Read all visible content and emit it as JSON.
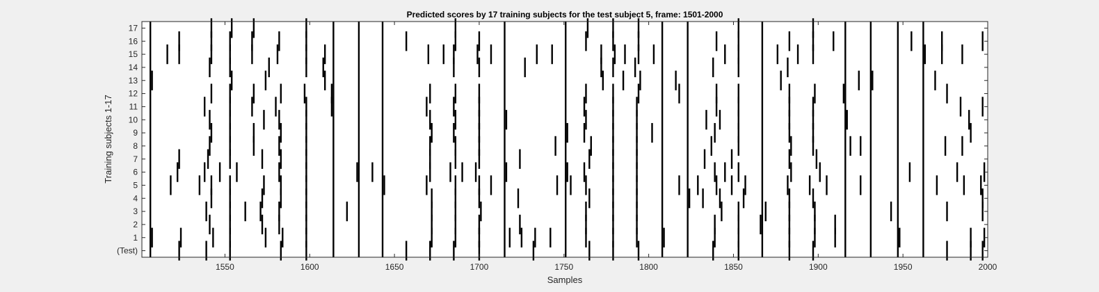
{
  "chart_data": {
    "type": "raster",
    "title": "Predicted scores by 17 training subjects for the test subject 5, frame: 1501-2000",
    "xlabel": "Samples",
    "ylabel": "Training subjects 1-17",
    "xlim": [
      1501,
      2000
    ],
    "xticks": [
      1550,
      1600,
      1650,
      1700,
      1750,
      1800,
      1850,
      1900,
      1950,
      2000
    ],
    "ytick_labels": [
      "(Test)",
      "1",
      "2",
      "3",
      "4",
      "5",
      "6",
      "7",
      "8",
      "9",
      "10",
      "11",
      "12",
      "13",
      "14",
      "15",
      "16",
      "17"
    ],
    "grid": false,
    "common_events": [
      1506,
      1614,
      1629,
      1643,
      1715,
      1751,
      1808,
      1823,
      1867,
      1916,
      1931,
      1947,
      1962
    ],
    "rows": [
      {
        "label": "(Test)",
        "events": [
          1506,
          1523,
          1539,
          1553,
          1583,
          1598,
          1614,
          1629,
          1643,
          1657,
          1671,
          1685,
          1700,
          1715,
          1732,
          1751,
          1765,
          1779,
          1794,
          1808,
          1823,
          1838,
          1853,
          1867,
          1883,
          1897,
          1916,
          1931,
          1947,
          1962,
          1976,
          1990,
          1997
        ]
      },
      {
        "label": "1",
        "events": [
          1507,
          1524,
          1543,
          1553,
          1574,
          1584,
          1598,
          1614,
          1629,
          1643,
          1672,
          1686,
          1700,
          1715,
          1718,
          1725,
          1733,
          1742,
          1751,
          1763,
          1779,
          1793,
          1809,
          1823,
          1839,
          1853,
          1867,
          1883,
          1898,
          1910,
          1916,
          1931,
          1948,
          1962,
          1990,
          1998
        ]
      },
      {
        "label": "2",
        "events": [
          1506,
          1541,
          1553,
          1572,
          1582,
          1598,
          1614,
          1629,
          1643,
          1672,
          1686,
          1700,
          1715,
          1724,
          1751,
          1763,
          1779,
          1793,
          1808,
          1823,
          1839,
          1853,
          1866,
          1883,
          1898,
          1910,
          1916,
          1931,
          1947,
          1962
        ]
      },
      {
        "label": "3",
        "events": [
          1506,
          1539,
          1553,
          1562,
          1571,
          1582,
          1598,
          1614,
          1622,
          1629,
          1643,
          1672,
          1686,
          1701,
          1715,
          1751,
          1763,
          1779,
          1793,
          1808,
          1823,
          1843,
          1853,
          1869,
          1883,
          1898,
          1916,
          1931,
          1943,
          1947,
          1962,
          1976,
          1997
        ]
      },
      {
        "label": "4",
        "events": [
          1506,
          1542,
          1553,
          1572,
          1583,
          1598,
          1614,
          1629,
          1643,
          1672,
          1686,
          1700,
          1715,
          1723,
          1751,
          1765,
          1779,
          1793,
          1808,
          1824,
          1832,
          1842,
          1856,
          1867,
          1883,
          1897,
          1916,
          1931,
          1947,
          1962,
          1997
        ]
      },
      {
        "label": "5",
        "events": [
          1506,
          1518,
          1535,
          1542,
          1553,
          1573,
          1583,
          1598,
          1614,
          1629,
          1644,
          1669,
          1686,
          1700,
          1707,
          1715,
          1746,
          1754,
          1763,
          1779,
          1793,
          1808,
          1818,
          1823,
          1829,
          1840,
          1849,
          1857,
          1867,
          1882,
          1895,
          1905,
          1916,
          1925,
          1947,
          1962,
          1970,
          1986,
          1996
        ]
      },
      {
        "label": "6",
        "events": [
          1506,
          1522,
          1538,
          1547,
          1557,
          1582,
          1598,
          1614,
          1628,
          1637,
          1643,
          1671,
          1683,
          1690,
          1698,
          1716,
          1752,
          1762,
          1779,
          1793,
          1808,
          1823,
          1839,
          1845,
          1853,
          1867,
          1884,
          1901,
          1916,
          1931,
          1947,
          1954,
          1962,
          1982,
          1998
        ]
      },
      {
        "label": "7",
        "events": [
          1506,
          1523,
          1540,
          1553,
          1572,
          1583,
          1598,
          1614,
          1629,
          1643,
          1671,
          1686,
          1700,
          1715,
          1724,
          1751,
          1765,
          1779,
          1793,
          1808,
          1823,
          1833,
          1849,
          1867,
          1883,
          1899,
          1916,
          1931,
          1947,
          1962
        ]
      },
      {
        "label": "8",
        "events": [
          1506,
          1541,
          1553,
          1567,
          1582,
          1598,
          1614,
          1629,
          1643,
          1671,
          1686,
          1700,
          1715,
          1745,
          1751,
          1766,
          1779,
          1793,
          1808,
          1823,
          1837,
          1853,
          1867,
          1884,
          1897,
          1916,
          1919,
          1925,
          1931,
          1947,
          1962,
          1975,
          1985
        ]
      },
      {
        "label": "9",
        "events": [
          1506,
          1542,
          1553,
          1567,
          1583,
          1598,
          1614,
          1629,
          1643,
          1672,
          1685,
          1700,
          1715,
          1752,
          1762,
          1779,
          1793,
          1802,
          1808,
          1823,
          1839,
          1853,
          1867,
          1883,
          1897,
          1916,
          1931,
          1947,
          1962,
          1990
        ]
      },
      {
        "label": "10",
        "events": [
          1506,
          1541,
          1553,
          1573,
          1582,
          1598,
          1614,
          1629,
          1643,
          1671,
          1686,
          1700,
          1716,
          1751,
          1763,
          1779,
          1793,
          1808,
          1823,
          1834,
          1842,
          1853,
          1867,
          1883,
          1897,
          1917,
          1931,
          1947,
          1962,
          1989
        ]
      },
      {
        "label": "11",
        "events": [
          1506,
          1538,
          1553,
          1566,
          1580,
          1598,
          1613,
          1629,
          1643,
          1669,
          1685,
          1700,
          1715,
          1751,
          1762,
          1779,
          1793,
          1808,
          1823,
          1840,
          1853,
          1867,
          1883,
          1897,
          1916,
          1931,
          1947,
          1962,
          1984,
          1997
        ]
      },
      {
        "label": "12",
        "events": [
          1506,
          1542,
          1553,
          1567,
          1583,
          1597,
          1613,
          1629,
          1643,
          1671,
          1686,
          1700,
          1715,
          1751,
          1763,
          1779,
          1794,
          1808,
          1818,
          1823,
          1840,
          1853,
          1867,
          1883,
          1898,
          1915,
          1931,
          1947,
          1962,
          1976
        ]
      },
      {
        "label": "13",
        "events": [
          1507,
          1554,
          1574,
          1609,
          1629,
          1643,
          1715,
          1773,
          1785,
          1795,
          1808,
          1816,
          1823,
          1867,
          1878,
          1924,
          1932,
          1947,
          1969
        ]
      },
      {
        "label": "14",
        "events": [
          1506,
          1541,
          1553,
          1576,
          1598,
          1608,
          1614,
          1629,
          1643,
          1685,
          1700,
          1715,
          1727,
          1751,
          1772,
          1779,
          1792,
          1808,
          1823,
          1838,
          1853,
          1867,
          1882,
          1947
        ]
      },
      {
        "label": "15",
        "events": [
          1506,
          1516,
          1523,
          1542,
          1553,
          1566,
          1581,
          1598,
          1609,
          1614,
          1629,
          1643,
          1670,
          1679,
          1685,
          1699,
          1707,
          1715,
          1734,
          1743,
          1751,
          1772,
          1780,
          1786,
          1794,
          1803,
          1808,
          1823,
          1845,
          1853,
          1867,
          1876,
          1888,
          1897,
          1916,
          1931,
          1947,
          1963,
          1973,
          1985
        ]
      },
      {
        "label": "16",
        "events": [
          1506,
          1523,
          1542,
          1553,
          1566,
          1582,
          1598,
          1614,
          1629,
          1643,
          1657,
          1686,
          1700,
          1715,
          1751,
          1763,
          1779,
          1794,
          1808,
          1823,
          1840,
          1853,
          1867,
          1883,
          1897,
          1909,
          1916,
          1931,
          1947,
          1955,
          1973,
          1997
        ]
      },
      {
        "label": "17",
        "events": [
          1506,
          1542,
          1554,
          1567,
          1598,
          1614,
          1629,
          1643,
          1686,
          1715,
          1751,
          1764,
          1779,
          1794,
          1808,
          1823,
          1853,
          1867,
          1897,
          1916,
          1931,
          1947,
          1962
        ]
      }
    ]
  }
}
